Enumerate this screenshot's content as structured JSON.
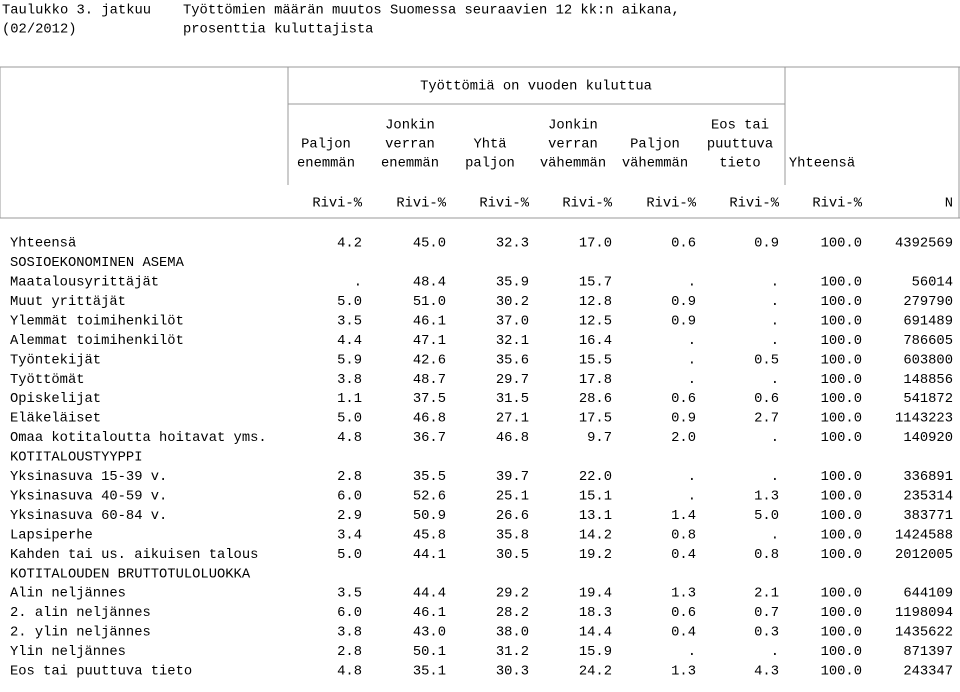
{
  "header": {
    "label": "Taulukko 3. jatkuu",
    "period": "(02/2012)",
    "title": "Työttömien määrän muutos Suomessa seuraavien 12 kk:n aikana,",
    "subtitle": "prosenttia kuluttajista"
  },
  "table": {
    "group_header": "Työttömiä on vuoden kuluttua",
    "columns": [
      [
        "Paljon",
        "enemmän"
      ],
      [
        "Jonkin",
        "verran",
        "enemmän"
      ],
      [
        "Yhtä",
        "paljon"
      ],
      [
        "Jonkin",
        "verran",
        "vähemmän"
      ],
      [
        "Paljon",
        "vähemmän"
      ],
      [
        "Eos tai",
        "puuttuva",
        "tieto"
      ],
      [
        "Yhteensä"
      ],
      []
    ],
    "units": [
      "Rivi-%",
      "Rivi-%",
      "Rivi-%",
      "Rivi-%",
      "Rivi-%",
      "Rivi-%",
      "Rivi-%",
      "N"
    ],
    "rows": [
      [
        "Yhteensä",
        "4.2",
        "45.0",
        "32.3",
        "17.0",
        "0.6",
        "0.9",
        "100.0",
        "4392569"
      ],
      [
        "SOSIOEKONOMINEN ASEMA"
      ],
      [
        "Maatalousyrittäjät",
        ".",
        "48.4",
        "35.9",
        "15.7",
        ".",
        ".",
        "100.0",
        "56014"
      ],
      [
        "Muut yrittäjät",
        "5.0",
        "51.0",
        "30.2",
        "12.8",
        "0.9",
        ".",
        "100.0",
        "279790"
      ],
      [
        "Ylemmät toimihenkilöt",
        "3.5",
        "46.1",
        "37.0",
        "12.5",
        "0.9",
        ".",
        "100.0",
        "691489"
      ],
      [
        "Alemmat toimihenkilöt",
        "4.4",
        "47.1",
        "32.1",
        "16.4",
        ".",
        ".",
        "100.0",
        "786605"
      ],
      [
        "Työntekijät",
        "5.9",
        "42.6",
        "35.6",
        "15.5",
        ".",
        "0.5",
        "100.0",
        "603800"
      ],
      [
        "Työttömät",
        "3.8",
        "48.7",
        "29.7",
        "17.8",
        ".",
        ".",
        "100.0",
        "148856"
      ],
      [
        "Opiskelijat",
        "1.1",
        "37.5",
        "31.5",
        "28.6",
        "0.6",
        "0.6",
        "100.0",
        "541872"
      ],
      [
        "Eläkeläiset",
        "5.0",
        "46.8",
        "27.1",
        "17.5",
        "0.9",
        "2.7",
        "100.0",
        "1143223"
      ],
      [
        "Omaa kotitaloutta hoitavat yms.",
        "4.8",
        "36.7",
        "46.8",
        "9.7",
        "2.0",
        ".",
        "100.0",
        "140920"
      ],
      [
        "KOTITALOUSTYYPPI"
      ],
      [
        "Yksinasuva 15-39 v.",
        "2.8",
        "35.5",
        "39.7",
        "22.0",
        ".",
        ".",
        "100.0",
        "336891"
      ],
      [
        "Yksinasuva 40-59 v.",
        "6.0",
        "52.6",
        "25.1",
        "15.1",
        ".",
        "1.3",
        "100.0",
        "235314"
      ],
      [
        "Yksinasuva 60-84 v.",
        "2.9",
        "50.9",
        "26.6",
        "13.1",
        "1.4",
        "5.0",
        "100.0",
        "383771"
      ],
      [
        "Lapsiperhe",
        "3.4",
        "45.8",
        "35.8",
        "14.2",
        "0.8",
        ".",
        "100.0",
        "1424588"
      ],
      [
        "Kahden tai us. aikuisen talous",
        "5.0",
        "44.1",
        "30.5",
        "19.2",
        "0.4",
        "0.8",
        "100.0",
        "2012005"
      ],
      [
        "KOTITALOUDEN BRUTTOTULOLUOKKA"
      ],
      [
        "Alin neljännes",
        "3.5",
        "44.4",
        "29.2",
        "19.4",
        "1.3",
        "2.1",
        "100.0",
        "644109"
      ],
      [
        "2. alin neljännes",
        "6.0",
        "46.1",
        "28.2",
        "18.3",
        "0.6",
        "0.7",
        "100.0",
        "1198094"
      ],
      [
        "2. ylin neljännes",
        "3.8",
        "43.0",
        "38.0",
        "14.4",
        "0.4",
        "0.3",
        "100.0",
        "1435622"
      ],
      [
        "Ylin neljännes",
        "2.8",
        "50.1",
        "31.2",
        "15.9",
        ".",
        ".",
        "100.0",
        "871397"
      ],
      [
        "Eos tai puuttuva tieto",
        "4.8",
        "35.1",
        "30.3",
        "24.2",
        "1.3",
        "4.3",
        "100.0",
        "243347"
      ]
    ]
  }
}
